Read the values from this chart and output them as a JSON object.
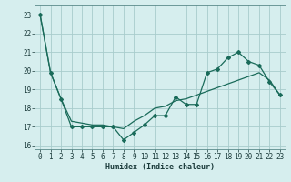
{
  "title": "",
  "xlabel": "Humidex (Indice chaleur)",
  "background_color": "#d6eeee",
  "grid_color": "#a8cccc",
  "line_color": "#1a6b5a",
  "xlim": [
    -0.5,
    23.5
  ],
  "ylim": [
    15.8,
    23.5
  ],
  "yticks": [
    16,
    17,
    18,
    19,
    20,
    21,
    22,
    23
  ],
  "xticks": [
    0,
    1,
    2,
    3,
    4,
    5,
    6,
    7,
    8,
    9,
    10,
    11,
    12,
    13,
    14,
    15,
    16,
    17,
    18,
    19,
    20,
    21,
    22,
    23
  ],
  "series1_x": [
    0,
    1,
    2,
    3,
    4,
    5,
    6,
    7,
    8,
    9,
    10,
    11,
    12,
    13,
    14,
    15,
    16,
    17,
    18,
    19,
    20,
    21,
    22,
    23
  ],
  "series1_y": [
    23.0,
    19.9,
    18.5,
    17.0,
    17.0,
    17.0,
    17.0,
    17.0,
    16.3,
    16.7,
    17.1,
    17.6,
    17.6,
    18.6,
    18.2,
    18.2,
    19.9,
    20.1,
    20.7,
    21.0,
    20.5,
    20.3,
    19.4,
    18.7
  ],
  "series2_x": [
    0,
    1,
    2,
    3,
    4,
    5,
    6,
    7,
    8,
    9,
    10,
    11,
    12,
    13,
    14,
    15,
    16,
    17,
    18,
    19,
    20,
    21,
    22,
    23
  ],
  "series2_y": [
    23.0,
    19.9,
    18.5,
    17.3,
    17.2,
    17.1,
    17.1,
    17.0,
    16.9,
    17.3,
    17.6,
    18.0,
    18.1,
    18.4,
    18.5,
    18.7,
    18.9,
    19.1,
    19.3,
    19.5,
    19.7,
    19.9,
    19.5,
    18.7
  ],
  "tick_fontsize": 5.5,
  "xlabel_fontsize": 6.0
}
